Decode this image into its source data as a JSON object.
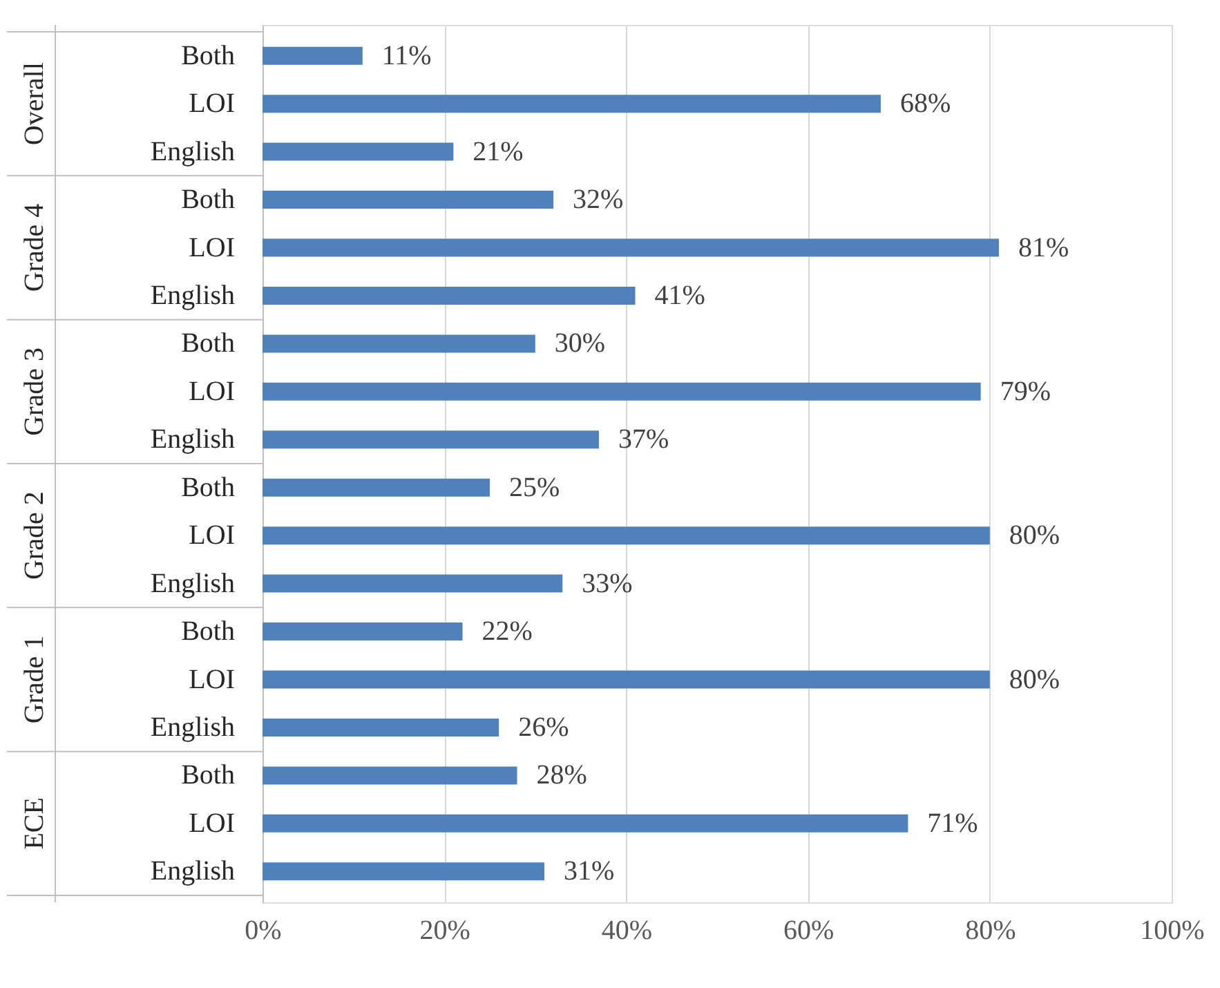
{
  "chart_data": {
    "type": "bar",
    "orientation": "horizontal",
    "categories": [
      "Both",
      "LOI",
      "English",
      "Both",
      "LOI",
      "English",
      "Both",
      "LOI",
      "English",
      "Both",
      "LOI",
      "English",
      "Both",
      "LOI",
      "English",
      "Both",
      "LOI",
      "English"
    ],
    "values": [
      11,
      68,
      21,
      32,
      81,
      41,
      30,
      79,
      37,
      25,
      80,
      33,
      22,
      80,
      26,
      28,
      71,
      31
    ],
    "value_labels": [
      "11%",
      "68%",
      "21%",
      "32%",
      "81%",
      "41%",
      "30%",
      "79%",
      "37%",
      "25%",
      "80%",
      "33%",
      "22%",
      "80%",
      "26%",
      "28%",
      "71%",
      "31%"
    ],
    "color": "#4f81bd",
    "xlim": [
      0,
      100
    ],
    "xticks": [
      {
        "value": 0,
        "label": "0%"
      },
      {
        "value": 20,
        "label": "20%"
      },
      {
        "value": 40,
        "label": "40%"
      },
      {
        "value": 60,
        "label": "60%"
      },
      {
        "value": 80,
        "label": "80%"
      },
      {
        "value": 100,
        "label": "100%"
      }
    ],
    "grid": "x",
    "annotations": [
      "Overall",
      "Grade 4",
      "Grade 3",
      "Grade 2",
      "Grade 1",
      "ECE"
    ]
  }
}
